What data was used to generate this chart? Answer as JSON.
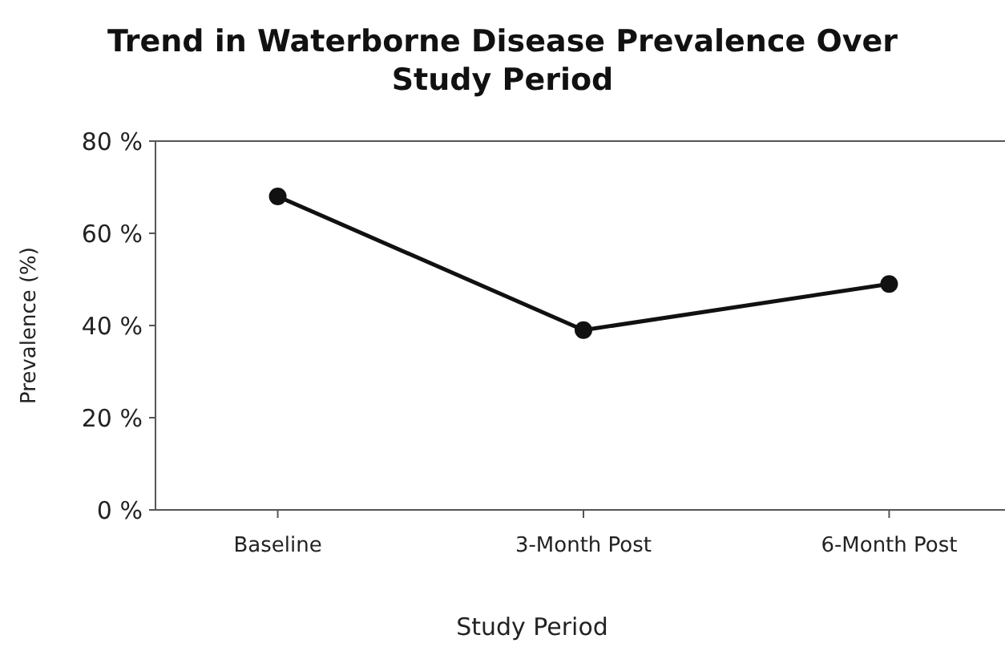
{
  "chart_data": {
    "type": "line",
    "title": "Trend in Waterborne Disease Prevalence Over Study Period",
    "xlabel": "Study Period",
    "ylabel": "Prevalence (%)",
    "categories": [
      "Baseline",
      "3-Month Post",
      "6-Month Post"
    ],
    "series": [
      {
        "color": "#111111",
        "values": [
          68,
          39,
          49
        ]
      }
    ],
    "ylim": [
      0,
      80
    ],
    "yticks": [
      {
        "value": 0,
        "label": "0 %"
      },
      {
        "value": 20,
        "label": "20 %"
      },
      {
        "value": 40,
        "label": "40 %"
      },
      {
        "value": 60,
        "label": "60 %"
      },
      {
        "value": 80,
        "label": "80 %"
      }
    ],
    "marker": "circle",
    "line_style": "solid",
    "grid": false
  }
}
